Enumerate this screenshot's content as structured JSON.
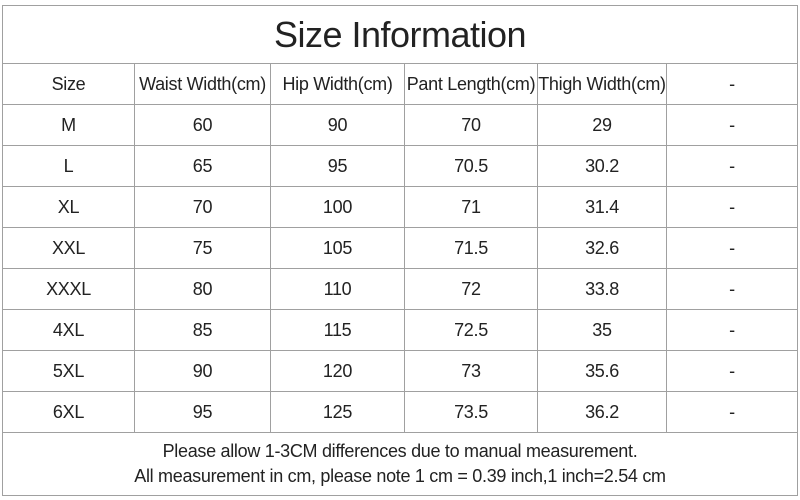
{
  "title": "Size Information",
  "table": {
    "columns": [
      "Size",
      "Waist Width(cm)",
      "Hip Width(cm)",
      "Pant Length(cm)",
      "Thigh Width(cm)",
      "-"
    ],
    "rows": [
      [
        "M",
        "60",
        "90",
        "70",
        "29",
        "-"
      ],
      [
        "L",
        "65",
        "95",
        "70.5",
        "30.2",
        "-"
      ],
      [
        "XL",
        "70",
        "100",
        "71",
        "31.4",
        "-"
      ],
      [
        "XXL",
        "75",
        "105",
        "71.5",
        "32.6",
        "-"
      ],
      [
        "XXXL",
        "80",
        "110",
        "72",
        "33.8",
        "-"
      ],
      [
        "4XL",
        "85",
        "115",
        "72.5",
        "35",
        "-"
      ],
      [
        "5XL",
        "90",
        "120",
        "73",
        "35.6",
        "-"
      ],
      [
        "6XL",
        "95",
        "125",
        "73.5",
        "36.2",
        "-"
      ]
    ]
  },
  "notes": [
    "Please allow 1-3CM differences due to manual measurement.",
    "All measurement in cm, please note 1 cm = 0.39 inch,1 inch=2.54 cm"
  ]
}
